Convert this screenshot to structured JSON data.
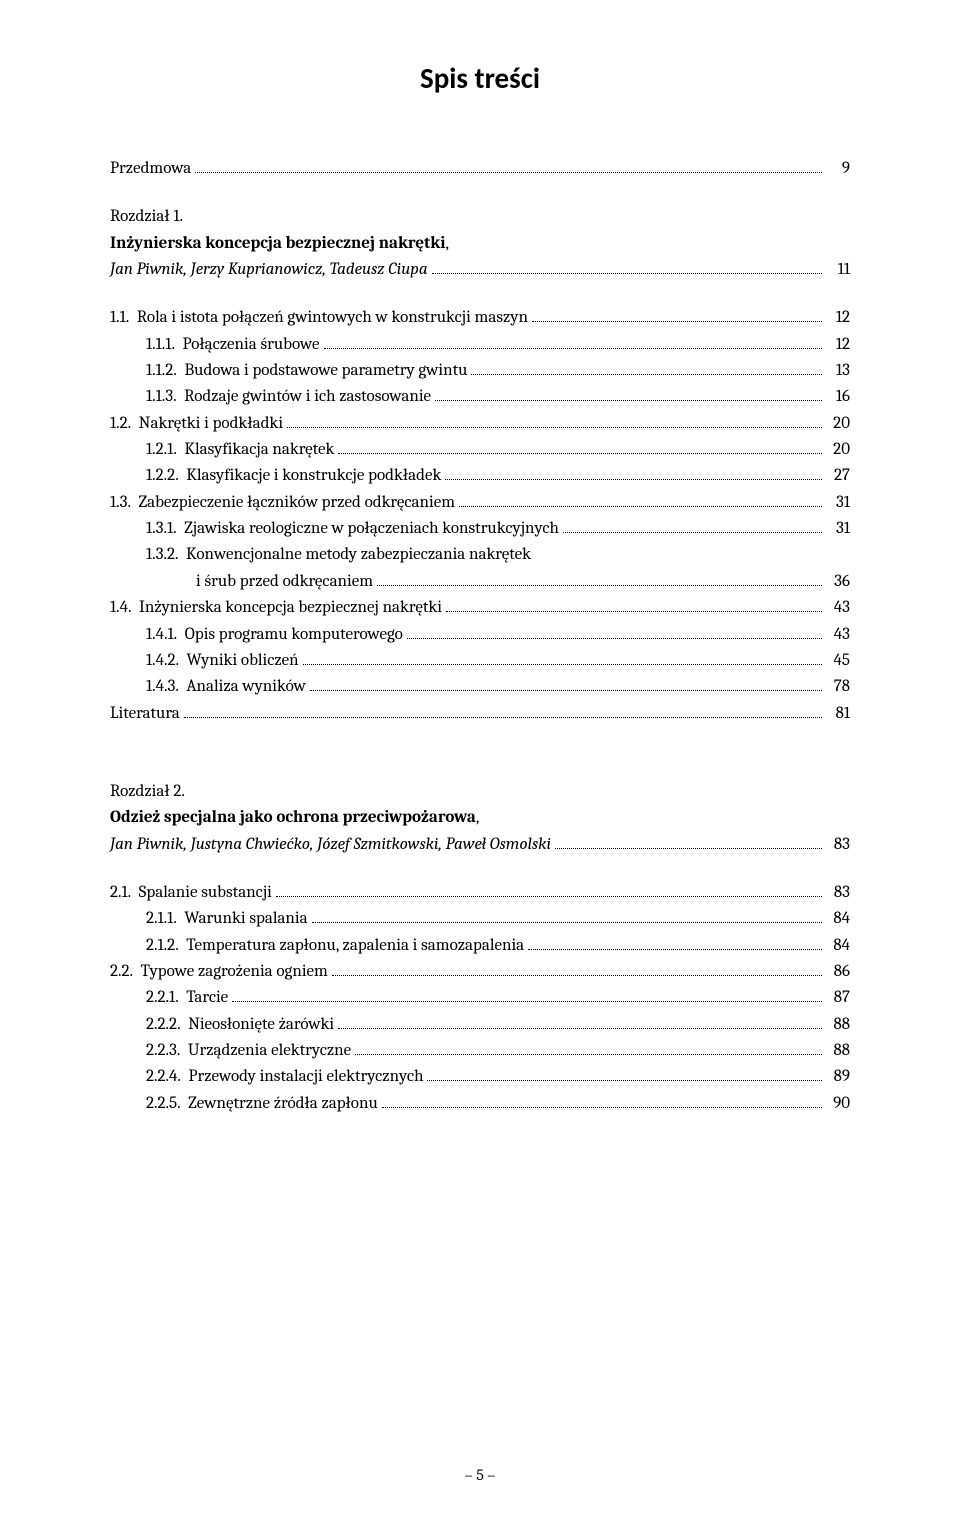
{
  "title": "Spis treści",
  "footer": "– 5 –",
  "preface": {
    "label": "Przedmowa",
    "page": "9"
  },
  "chapter1": {
    "heading": "Rozdział 1.",
    "boldTitle": "Inżynierska koncepcja bezpiecznej nakrętki",
    "authors": "Jan Piwnik, Jerzy Kuprianowicz, Tadeusz Ciupa",
    "page": "11",
    "entries": [
      {
        "indent": 0,
        "label": "1.1.",
        "text": "Rola i istota połączeń gwintowych w konstrukcji maszyn",
        "page": "12"
      },
      {
        "indent": 1,
        "label": "1.1.1.",
        "text": "Połączenia śrubowe",
        "page": "12"
      },
      {
        "indent": 1,
        "label": "1.1.2.",
        "text": "Budowa i podstawowe parametry gwintu",
        "page": "13"
      },
      {
        "indent": 1,
        "label": "1.1.3.",
        "text": "Rodzaje gwintów i ich zastosowanie",
        "page": "16"
      },
      {
        "indent": 0,
        "label": "1.2.",
        "text": "Nakrętki i podkładki",
        "page": "20"
      },
      {
        "indent": 1,
        "label": "1.2.1.",
        "text": "Klasyfikacja nakrętek",
        "page": "20"
      },
      {
        "indent": 1,
        "label": "1.2.2.",
        "text": "Klasyfikacje i konstrukcje podkładek",
        "page": "27"
      },
      {
        "indent": 0,
        "label": "1.3.",
        "text": "Zabezpieczenie łączników przed odkręcaniem",
        "page": "31"
      },
      {
        "indent": 1,
        "label": "1.3.1.",
        "text": "Zjawiska reologiczne w połączeniach konstrukcyjnych",
        "page": "31"
      },
      {
        "indent": 1,
        "label": "1.3.2.",
        "text": "Konwencjonalne metody zabezpieczania nakrętek",
        "page": ""
      },
      {
        "indent": "cont",
        "label": "",
        "text": "i śrub przed odkręcaniem",
        "page": "36"
      },
      {
        "indent": 0,
        "label": "1.4.",
        "text": "Inżynierska koncepcja bezpiecznej nakrętki",
        "page": "43"
      },
      {
        "indent": 1,
        "label": "1.4.1.",
        "text": "Opis programu komputerowego",
        "page": "43"
      },
      {
        "indent": 1,
        "label": "1.4.2.",
        "text": "Wyniki obliczeń",
        "page": "45"
      },
      {
        "indent": 1,
        "label": "1.4.3.",
        "text": "Analiza wyników",
        "page": "78"
      }
    ],
    "literature": {
      "label": "Literatura",
      "page": "81"
    }
  },
  "chapter2": {
    "heading": "Rozdział 2.",
    "boldTitle": "Odzież specjalna jako ochrona przeciwpożarowa",
    "authors": "Jan Piwnik, Justyna Chwiećko, Józef Szmitkowski, Paweł Osmolski",
    "page": "83",
    "entries": [
      {
        "indent": 0,
        "label": "2.1.",
        "text": "Spalanie substancji",
        "page": "83"
      },
      {
        "indent": 1,
        "label": "2.1.1.",
        "text": "Warunki spalania",
        "page": "84"
      },
      {
        "indent": 1,
        "label": "2.1.2.",
        "text": "Temperatura zapłonu, zapalenia i samozapalenia",
        "page": "84"
      },
      {
        "indent": 0,
        "label": "2.2.",
        "text": "Typowe zagrożenia ogniem",
        "page": "86"
      },
      {
        "indent": 1,
        "label": "2.2.1.",
        "text": "Tarcie",
        "page": "87"
      },
      {
        "indent": 1,
        "label": "2.2.2.",
        "text": "Nieosłonięte żarówki",
        "page": "88"
      },
      {
        "indent": 1,
        "label": "2.2.3.",
        "text": "Urządzenia elektryczne",
        "page": "88"
      },
      {
        "indent": 1,
        "label": "2.2.4.",
        "text": "Przewody instalacji elektrycznych",
        "page": "89"
      },
      {
        "indent": 1,
        "label": "2.2.5.",
        "text": "Zewnętrzne źródła zapłonu",
        "page": "90"
      }
    ]
  }
}
